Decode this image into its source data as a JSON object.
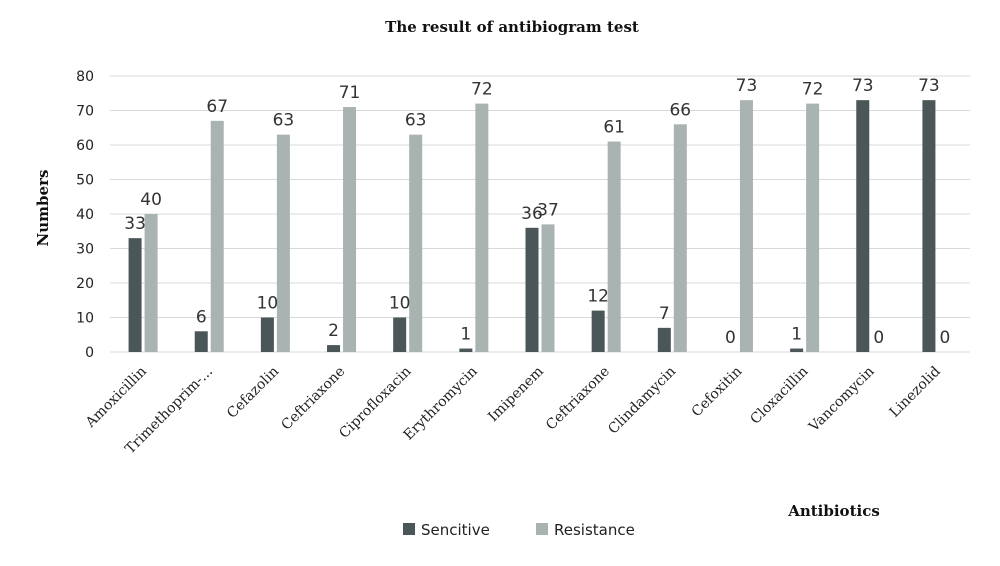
{
  "chart_data": {
    "type": "bar",
    "title": "The result of antibiogram test",
    "xlabel": "Antibiotics",
    "ylabel": "Numbers",
    "ylim": [
      0,
      80
    ],
    "yticks": [
      0,
      10,
      20,
      30,
      40,
      50,
      60,
      70,
      80
    ],
    "grid": true,
    "legend_position": "bottom",
    "categories": [
      "Amoxicillin",
      "Trimethoprim-...",
      "Cefazolin",
      "Ceftriaxone",
      "Ciprofloxacin",
      "Erythromycin",
      "Imipenem",
      "Ceftriaxone",
      "Clindamycin",
      "Cefoxitin",
      "Cloxacillin",
      "Vancomycin",
      "Linezolid"
    ],
    "series": [
      {
        "name": "Sencitive",
        "color": "#4a5658",
        "values": [
          33,
          6,
          10,
          2,
          10,
          1,
          36,
          12,
          7,
          0,
          1,
          73,
          73
        ]
      },
      {
        "name": "Resistance",
        "color": "#a9b4b2",
        "values": [
          40,
          67,
          63,
          71,
          63,
          72,
          37,
          61,
          66,
          73,
          72,
          0,
          0
        ]
      }
    ]
  }
}
